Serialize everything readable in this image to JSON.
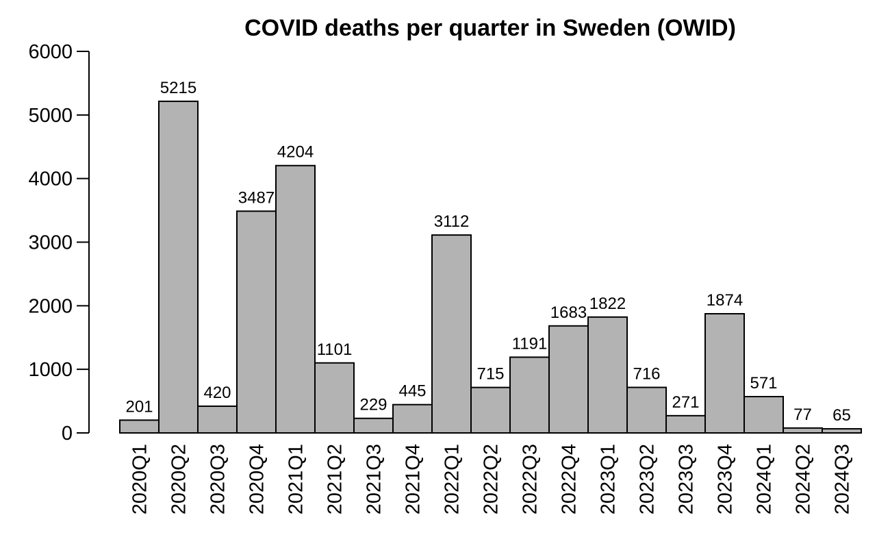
{
  "chart_data": {
    "type": "bar",
    "title": "COVID deaths per quarter in Sweden (OWID)",
    "xlabel": "",
    "ylabel": "",
    "ylim": [
      0,
      6000
    ],
    "yticks": [
      0,
      1000,
      2000,
      3000,
      4000,
      5000,
      6000
    ],
    "grid": false,
    "categories": [
      "2020Q1",
      "2020Q2",
      "2020Q3",
      "2020Q4",
      "2021Q1",
      "2021Q2",
      "2021Q3",
      "2021Q4",
      "2022Q1",
      "2022Q2",
      "2022Q3",
      "2022Q4",
      "2023Q1",
      "2023Q2",
      "2023Q3",
      "2023Q4",
      "2024Q1",
      "2024Q2",
      "2024Q3"
    ],
    "values": [
      201,
      5215,
      420,
      3487,
      4204,
      1101,
      229,
      445,
      3112,
      715,
      1191,
      1683,
      1822,
      716,
      271,
      1874,
      571,
      77,
      65
    ],
    "colors": {
      "bar_fill": "#b3b3b3",
      "bar_stroke": "#000000"
    }
  }
}
